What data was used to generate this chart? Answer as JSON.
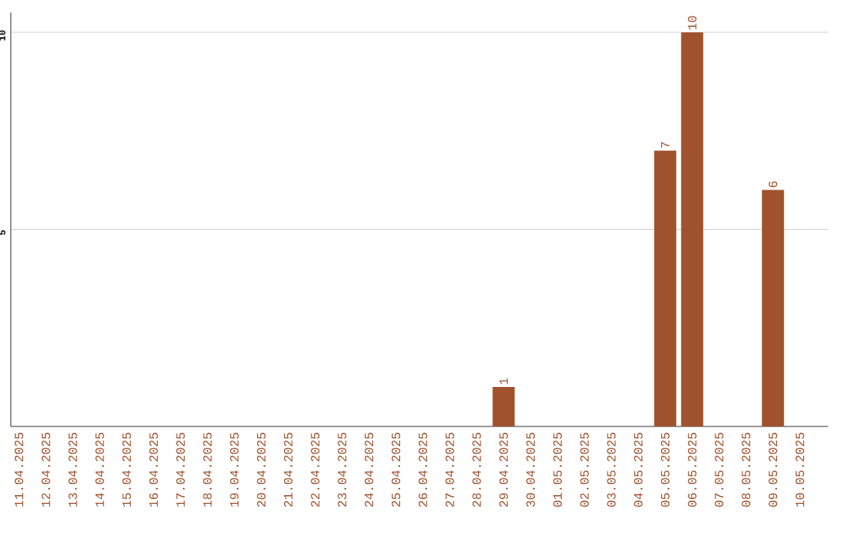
{
  "chart_data": {
    "type": "bar",
    "categories": [
      "11.04.2025",
      "12.04.2025",
      "13.04.2025",
      "14.04.2025",
      "15.04.2025",
      "16.04.2025",
      "17.04.2025",
      "18.04.2025",
      "19.04.2025",
      "20.04.2025",
      "21.04.2025",
      "22.04.2025",
      "23.04.2025",
      "24.04.2025",
      "25.04.2025",
      "26.04.2025",
      "27.04.2025",
      "28.04.2025",
      "29.04.2025",
      "30.04.2025",
      "01.05.2025",
      "02.05.2025",
      "03.05.2025",
      "04.05.2025",
      "05.05.2025",
      "06.05.2025",
      "07.05.2025",
      "08.05.2025",
      "09.05.2025",
      "10.05.2025"
    ],
    "values": [
      0,
      0,
      0,
      0,
      0,
      0,
      0,
      0,
      0,
      0,
      0,
      0,
      0,
      0,
      0,
      0,
      0,
      0,
      1,
      0,
      0,
      0,
      0,
      0,
      7,
      10,
      0,
      0,
      6,
      0
    ],
    "value_labels": [
      null,
      null,
      null,
      null,
      null,
      null,
      null,
      null,
      null,
      null,
      null,
      null,
      null,
      null,
      null,
      null,
      null,
      null,
      "1",
      null,
      null,
      null,
      null,
      null,
      "7",
      "10",
      null,
      null,
      "6",
      null
    ],
    "color": "#a0522d",
    "ylim": [
      0,
      10.5
    ],
    "yticks": [
      5,
      10
    ],
    "grid": "y"
  }
}
